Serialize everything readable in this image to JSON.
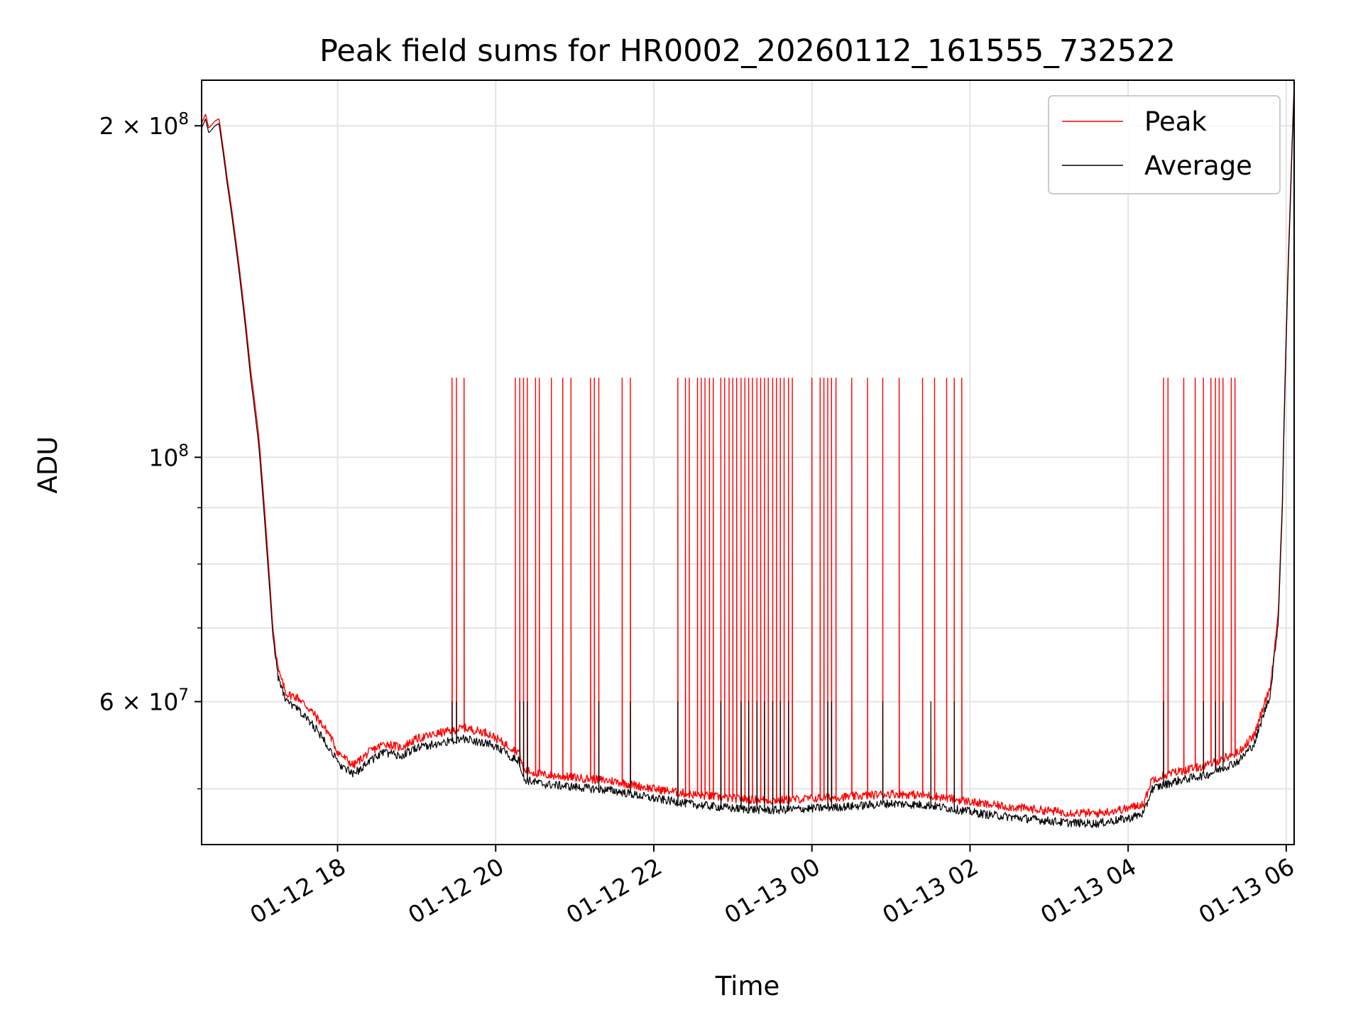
{
  "chart_data": {
    "type": "line",
    "title": "Peak field sums for HR0002_20260112_161555_732522",
    "xlabel": "Time",
    "ylabel": "ADU",
    "yscale": "log",
    "ylim": [
      44500000,
      220000000
    ],
    "xlim_hours": [
      16.28,
      30.1
    ],
    "grid": true,
    "legend_position": "top-right",
    "x_ticks": [
      {
        "label": "01-12 18",
        "hours": 18
      },
      {
        "label": "01-12 20",
        "hours": 20
      },
      {
        "label": "01-12 22",
        "hours": 22
      },
      {
        "label": "01-13 00",
        "hours": 24
      },
      {
        "label": "01-13 02",
        "hours": 26
      },
      {
        "label": "01-13 04",
        "hours": 28
      },
      {
        "label": "01-13 06",
        "hours": 30
      }
    ],
    "y_major_ticks": [
      {
        "value": 200000000,
        "mantissa": "2",
        "exponent": "8"
      },
      {
        "value": 100000000,
        "mantissa": "",
        "exponent": "8"
      },
      {
        "value": 60000000,
        "mantissa": "6",
        "exponent": "7"
      }
    ],
    "y_minor_ticks": [
      50000000,
      70000000,
      80000000,
      90000000
    ],
    "series": [
      {
        "name": "Peak",
        "color": "#ff0000",
        "base_points": [
          [
            16.28,
            201000000
          ],
          [
            16.33,
            205000000
          ],
          [
            16.37,
            199000000
          ],
          [
            16.45,
            202000000
          ],
          [
            16.5,
            203000000
          ],
          [
            16.6,
            180000000
          ],
          [
            16.75,
            150000000
          ],
          [
            16.9,
            120000000
          ],
          [
            17.0,
            105000000
          ],
          [
            17.1,
            85000000
          ],
          [
            17.18,
            70000000
          ],
          [
            17.25,
            64000000
          ],
          [
            17.35,
            61000000
          ],
          [
            17.5,
            60500000
          ],
          [
            17.7,
            58500000
          ],
          [
            17.9,
            56000000
          ],
          [
            18.0,
            54000000
          ],
          [
            18.2,
            52500000
          ],
          [
            18.4,
            54000000
          ],
          [
            18.6,
            55000000
          ],
          [
            18.8,
            54500000
          ],
          [
            19.0,
            55500000
          ],
          [
            19.3,
            56200000
          ],
          [
            19.6,
            56800000
          ],
          [
            19.9,
            56200000
          ],
          [
            20.1,
            55000000
          ],
          [
            20.3,
            54000000
          ],
          [
            20.35,
            52000000
          ],
          [
            20.6,
            51500000
          ],
          [
            21.0,
            51200000
          ],
          [
            21.5,
            50800000
          ],
          [
            22.0,
            50000000
          ],
          [
            22.5,
            49400000
          ],
          [
            23.0,
            49000000
          ],
          [
            23.5,
            48800000
          ],
          [
            24.0,
            49000000
          ],
          [
            24.5,
            49200000
          ],
          [
            25.0,
            49500000
          ],
          [
            25.5,
            49300000
          ],
          [
            25.9,
            48800000
          ],
          [
            26.2,
            48400000
          ],
          [
            26.7,
            48000000
          ],
          [
            27.2,
            47600000
          ],
          [
            27.6,
            47500000
          ],
          [
            28.0,
            48000000
          ],
          [
            28.2,
            48500000
          ],
          [
            28.3,
            51000000
          ],
          [
            28.6,
            51800000
          ],
          [
            29.0,
            52500000
          ],
          [
            29.4,
            54000000
          ],
          [
            29.6,
            56000000
          ],
          [
            29.8,
            62000000
          ],
          [
            29.9,
            72000000
          ],
          [
            29.95,
            90000000
          ],
          [
            30.0,
            130000000
          ],
          [
            30.05,
            170000000
          ],
          [
            30.1,
            218000000
          ]
        ],
        "spike_value": 118000000,
        "spike_times": [
          19.45,
          19.5,
          19.6,
          20.25,
          20.3,
          20.35,
          20.4,
          20.5,
          20.55,
          20.7,
          20.85,
          20.95,
          21.2,
          21.25,
          21.3,
          21.6,
          21.7,
          22.3,
          22.4,
          22.45,
          22.55,
          22.6,
          22.65,
          22.7,
          22.75,
          22.85,
          22.9,
          22.95,
          23.0,
          23.05,
          23.1,
          23.15,
          23.2,
          23.25,
          23.3,
          23.35,
          23.4,
          23.45,
          23.5,
          23.55,
          23.6,
          23.65,
          23.7,
          23.75,
          24.0,
          24.1,
          24.15,
          24.2,
          24.25,
          24.3,
          24.5,
          24.7,
          24.9,
          25.1,
          25.4,
          25.55,
          25.7,
          25.8,
          25.9,
          28.45,
          28.5,
          28.7,
          28.85,
          28.95,
          29.05,
          29.1,
          29.15,
          29.2,
          29.3,
          29.35
        ]
      },
      {
        "name": "Average",
        "color": "#000000",
        "base_points": [
          [
            16.28,
            199000000
          ],
          [
            16.33,
            203000000
          ],
          [
            16.37,
            197000000
          ],
          [
            16.45,
            200000000
          ],
          [
            16.5,
            201000000
          ],
          [
            16.6,
            178000000
          ],
          [
            16.75,
            148000000
          ],
          [
            16.9,
            118000000
          ],
          [
            17.0,
            103000000
          ],
          [
            17.1,
            83000000
          ],
          [
            17.18,
            69000000
          ],
          [
            17.25,
            63000000
          ],
          [
            17.35,
            60000000
          ],
          [
            17.5,
            59000000
          ],
          [
            17.7,
            57000000
          ],
          [
            17.9,
            54500000
          ],
          [
            18.0,
            52800000
          ],
          [
            18.2,
            51500000
          ],
          [
            18.4,
            53000000
          ],
          [
            18.6,
            54000000
          ],
          [
            18.8,
            53500000
          ],
          [
            19.0,
            54500000
          ],
          [
            19.3,
            55000000
          ],
          [
            19.6,
            55500000
          ],
          [
            19.9,
            55000000
          ],
          [
            20.1,
            54000000
          ],
          [
            20.3,
            53000000
          ],
          [
            20.35,
            51000000
          ],
          [
            20.6,
            50500000
          ],
          [
            21.0,
            50200000
          ],
          [
            21.5,
            49800000
          ],
          [
            22.0,
            49000000
          ],
          [
            22.5,
            48400000
          ],
          [
            23.0,
            48000000
          ],
          [
            23.5,
            47800000
          ],
          [
            24.0,
            48000000
          ],
          [
            24.5,
            48200000
          ],
          [
            25.0,
            48500000
          ],
          [
            25.5,
            48300000
          ],
          [
            25.9,
            47800000
          ],
          [
            26.2,
            47400000
          ],
          [
            26.7,
            47000000
          ],
          [
            27.2,
            46600000
          ],
          [
            27.6,
            46500000
          ],
          [
            28.0,
            47000000
          ],
          [
            28.2,
            47500000
          ],
          [
            28.3,
            50000000
          ],
          [
            28.6,
            50800000
          ],
          [
            29.0,
            51500000
          ],
          [
            29.4,
            53000000
          ],
          [
            29.6,
            55000000
          ],
          [
            29.8,
            61000000
          ],
          [
            29.9,
            71000000
          ],
          [
            29.95,
            89000000
          ],
          [
            30.0,
            128000000
          ],
          [
            30.05,
            168000000
          ],
          [
            30.1,
            216000000
          ]
        ],
        "spike_value": 60000000,
        "spike_times": [
          19.45,
          19.5,
          20.3,
          20.35,
          20.4,
          21.3,
          21.7,
          22.3,
          22.85,
          23.1,
          23.2,
          23.3,
          23.4,
          23.5,
          23.6,
          23.7,
          24.2,
          24.25,
          24.9,
          25.5,
          25.8,
          28.45,
          28.95,
          29.1,
          29.2
        ]
      }
    ]
  }
}
